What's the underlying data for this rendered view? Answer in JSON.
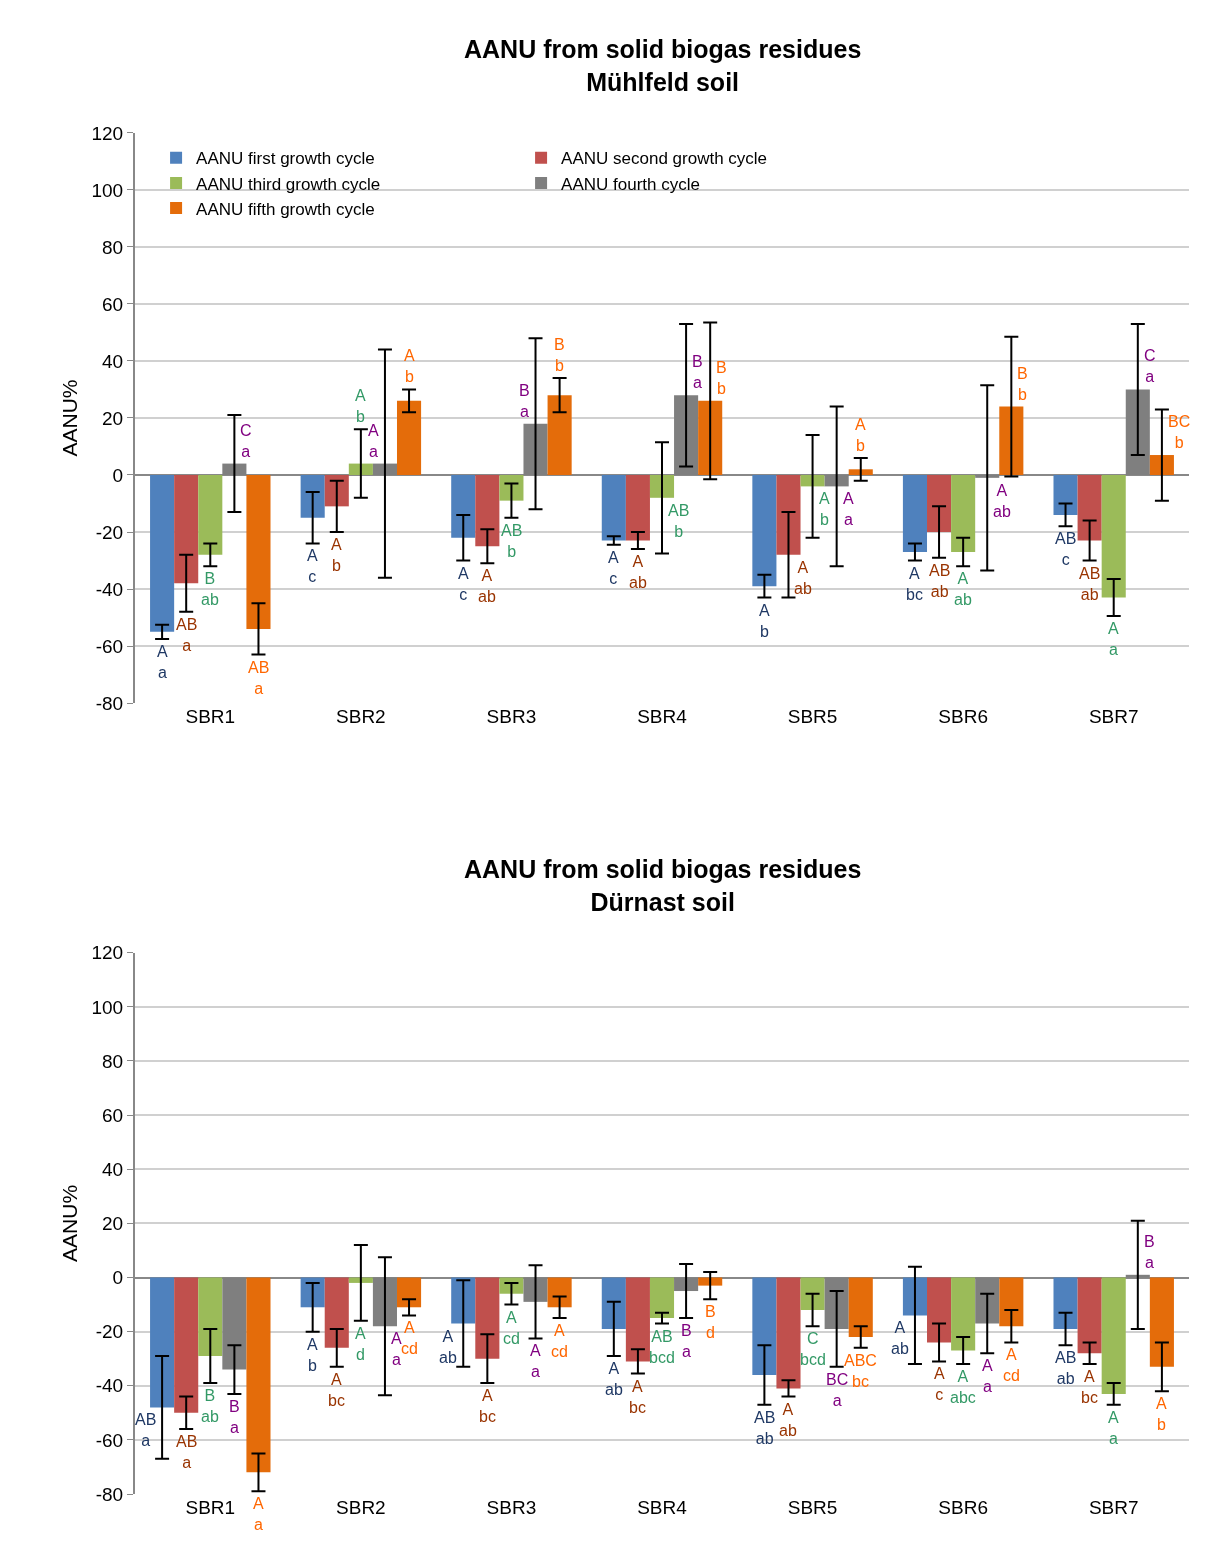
{
  "chart_data": [
    {
      "type": "bar",
      "title": "AANU from solid biogas residues\nMühlfeld soil",
      "ylabel": "AANU%",
      "categories": [
        "SBR1",
        "SBR2",
        "SBR3",
        "SBR4",
        "SBR5",
        "SBR6",
        "SBR7"
      ],
      "ylim": [
        -80,
        120
      ],
      "yticks": [
        -80,
        -60,
        -40,
        -20,
        0,
        20,
        40,
        60,
        80,
        100,
        120
      ],
      "grid": "y",
      "legend": "top",
      "series": [
        {
          "name": "AANU first growth cycle",
          "color": "#4f81bd",
          "values": [
            -55,
            -15,
            -22,
            -23,
            -39,
            -27,
            -14
          ],
          "errors": [
            2.5,
            9,
            8,
            1.5,
            4,
            3,
            4
          ],
          "value_labels": [
            "A\na",
            "A\nc",
            "A\nc",
            "A\nc",
            "A\nb",
            "A\nbc",
            "AB\nc"
          ]
        },
        {
          "name": "AANU second growth cycle",
          "color": "#c0504d",
          "values": [
            -38,
            -11,
            -25,
            -23,
            -28,
            -20,
            -23
          ],
          "errors": [
            10,
            9,
            6,
            3,
            15,
            9,
            7
          ],
          "value_labels": [
            "AB\na",
            "A\nb",
            "A\nab",
            "A\nab",
            "A\nab",
            "AB\nab",
            "AB\nab"
          ]
        },
        {
          "name": "AANU third growth cycle",
          "color": "#9bbb59",
          "values": [
            -28,
            4,
            -9,
            -8,
            -4,
            -27,
            -43
          ],
          "errors": [
            4,
            12,
            6,
            19.5,
            18,
            5,
            6.5
          ],
          "value_labels": [
            "B\nab",
            "A\nb",
            "AB\nb",
            "AB\nb",
            "A\nb",
            "A\nab",
            "A\na"
          ]
        },
        {
          "name": "AANU fourth cycle",
          "color": "#7f7f7f",
          "values": [
            4,
            4,
            18,
            28,
            -4,
            -1,
            30
          ],
          "errors": [
            17,
            40,
            30,
            25,
            28,
            32.5,
            23
          ],
          "value_labels": [
            "C\na",
            "A\na",
            "B\na",
            "B\na",
            "A\na",
            "A\nab",
            "C\na"
          ]
        },
        {
          "name": "AANU fifth growth cycle",
          "color": "#e46c0a",
          "values": [
            -54,
            26,
            28,
            26,
            2,
            24,
            7
          ],
          "errors": [
            9,
            4,
            6,
            27.5,
            4,
            24.5,
            16
          ],
          "value_labels": [
            "AB\na",
            "A\nb",
            "B\nb",
            "B\nb",
            "A\nb",
            "B\nb",
            "BC\nb"
          ]
        }
      ]
    },
    {
      "type": "bar",
      "title": "AANU from solid biogas residues\nDürnast soil",
      "ylabel": "AANU%",
      "categories": [
        "SBR1",
        "SBR2",
        "SBR3",
        "SBR4",
        "SBR5",
        "SBR6",
        "SBR7"
      ],
      "ylim": [
        -80,
        120
      ],
      "yticks": [
        -80,
        -60,
        -40,
        -20,
        0,
        20,
        40,
        60,
        80,
        100,
        120
      ],
      "grid": "y",
      "series": [
        {
          "color": "#4f81bd",
          "values": [
            -48,
            -11,
            -17,
            -19,
            -36,
            -14,
            -19
          ],
          "errors": [
            19,
            9,
            16,
            10,
            11,
            18,
            6
          ],
          "value_labels": [
            "AB\na",
            "A\nb",
            "A\nab",
            "A\nab",
            "AB\nab",
            "A\nab",
            "AB\nab"
          ]
        },
        {
          "color": "#c0504d",
          "values": [
            -50,
            -26,
            -30,
            -31,
            -41,
            -24,
            -28
          ],
          "errors": [
            6,
            7,
            9,
            4.5,
            3,
            7,
            4
          ],
          "value_labels": [
            "AB\na",
            "A\nbc",
            "A\nbc",
            "A\nbc",
            "A\nab",
            "A\nc",
            "A\nbc"
          ]
        },
        {
          "color": "#9bbb59",
          "values": [
            -29,
            -2,
            -6,
            -15,
            -12,
            -27,
            -43
          ],
          "errors": [
            10,
            14,
            4,
            2,
            6,
            5,
            4
          ],
          "value_labels": [
            "B\nab",
            "A\nd",
            "A\ncd",
            "AB\nbcd",
            "C\nbcd",
            "A\nabc",
            "A\na"
          ]
        },
        {
          "color": "#7f7f7f",
          "values": [
            -34,
            -18,
            -9,
            -5,
            -19,
            -17,
            1
          ],
          "errors": [
            9,
            25.5,
            13.5,
            10,
            14,
            11,
            20
          ],
          "value_labels": [
            "B\na",
            "A\na",
            "A\na",
            "B\na",
            "BC\na",
            "A\na",
            "B\na"
          ]
        },
        {
          "color": "#e46c0a",
          "values": [
            -72,
            -11,
            -11,
            -3,
            -22,
            -18,
            -33
          ],
          "errors": [
            7,
            3,
            4,
            5,
            4,
            6,
            9
          ],
          "value_labels": [
            "A\na",
            "A\ncd",
            "A\ncd",
            "B\nd",
            "ABC\nbc",
            "A\ncd",
            "A\nb"
          ]
        }
      ]
    }
  ]
}
